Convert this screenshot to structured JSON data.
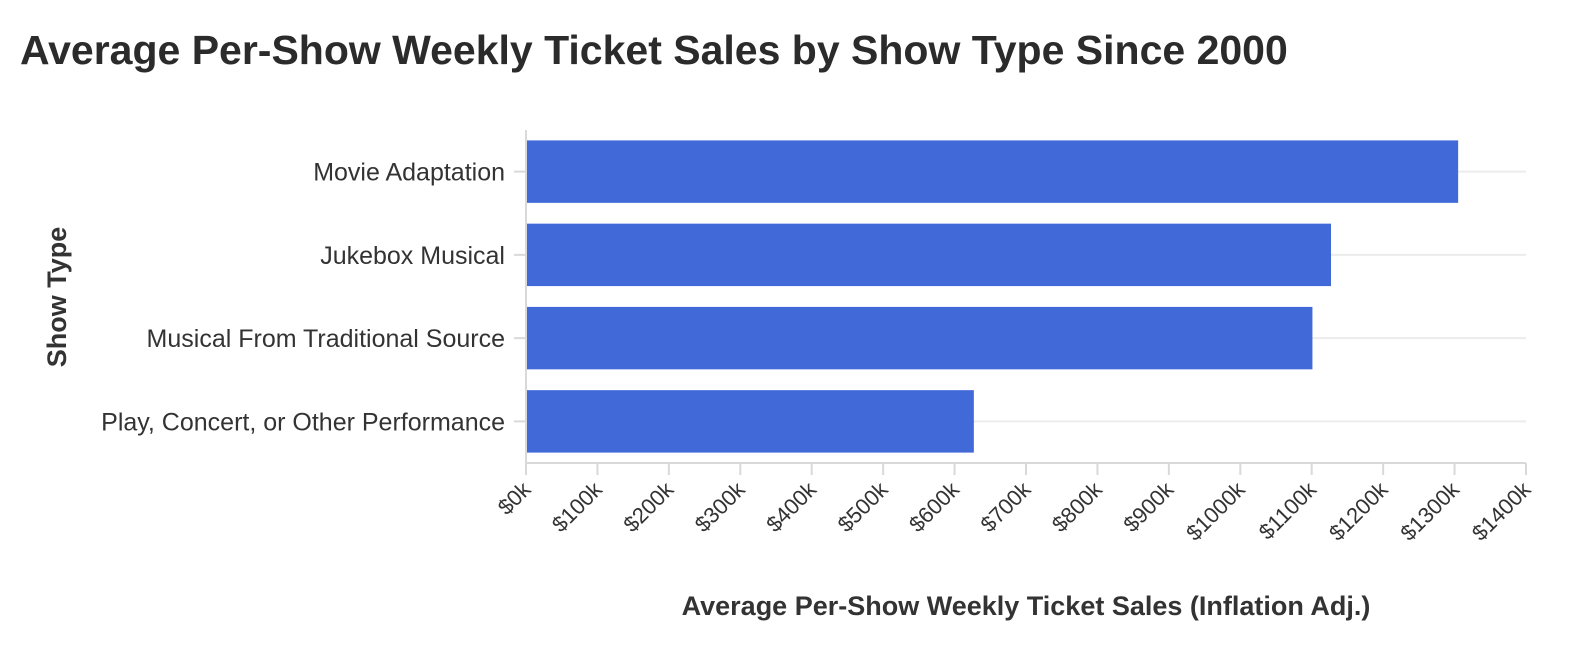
{
  "chart_data": {
    "type": "bar",
    "orientation": "horizontal",
    "title": "Average Per-Show Weekly Ticket Sales by Show Type Since 2000",
    "xlabel": "Average Per-Show Weekly Ticket Sales (Inflation Adj.)",
    "ylabel": "Show Type",
    "categories": [
      "Movie Adaptation",
      "Jukebox Musical",
      "Musical From Traditional Source",
      "Play, Concert, or Other Performance"
    ],
    "values": [
      1305,
      1127,
      1101,
      627
    ],
    "value_unit": "$ thousands",
    "xlim": [
      0,
      1400
    ],
    "xticks": [
      0,
      100,
      200,
      300,
      400,
      500,
      600,
      700,
      800,
      900,
      1000,
      1100,
      1200,
      1300,
      1400
    ],
    "xtick_labels": [
      "$0k",
      "$100k",
      "$200k",
      "$300k",
      "$400k",
      "$500k",
      "$600k",
      "$700k",
      "$800k",
      "$900k",
      "$1000k",
      "$1100k",
      "$1200k",
      "$1300k",
      "$1400k"
    ],
    "grid": true,
    "legend": "none",
    "colors": {
      "bar": "#4169d8",
      "grid": "#ececec",
      "axis": "#d9d9d9",
      "text": "#333333",
      "title": "#2b2b2b"
    }
  }
}
